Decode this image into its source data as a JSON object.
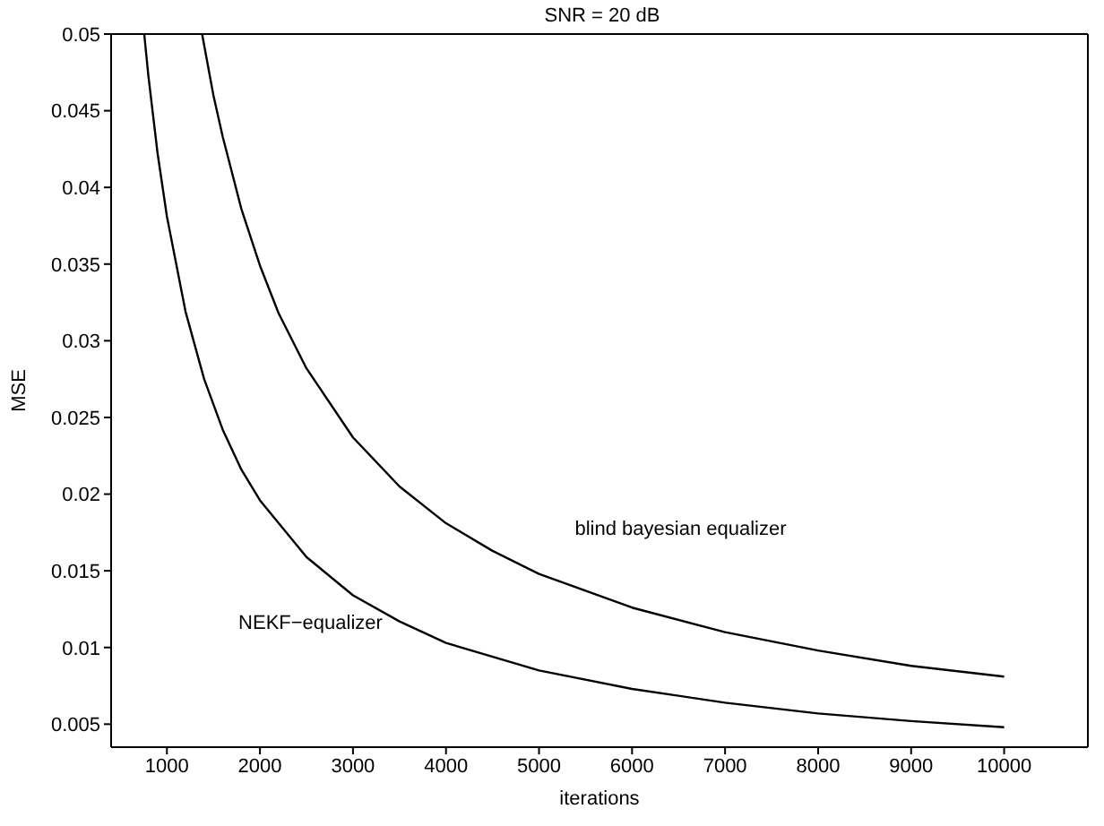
{
  "chart_data": {
    "type": "line",
    "title": "SNR = 20 dB",
    "xlabel": "iterations",
    "ylabel": "MSE",
    "xlim": [
      400,
      10900
    ],
    "xticks": [
      1000,
      2000,
      3000,
      4000,
      5000,
      6000,
      7000,
      8000,
      9000,
      10000
    ],
    "ylim": [
      0.0035,
      0.05
    ],
    "yticks": [
      0.005,
      0.01,
      0.015,
      0.02,
      0.025,
      0.03,
      0.035,
      0.04,
      0.045,
      0.05
    ],
    "grid": false,
    "legend": false,
    "marker": "none",
    "line_style": "solid",
    "series": [
      {
        "name": "NEKF−equalizer",
        "color": "#000000",
        "x": [
          756,
          800,
          900,
          1000,
          1200,
          1400,
          1600,
          1800,
          2000,
          2500,
          3000,
          3500,
          4000,
          5000,
          6000,
          7000,
          8000,
          9000,
          10000
        ],
        "values": [
          0.05,
          0.0473,
          0.0422,
          0.0381,
          0.0319,
          0.0275,
          0.0242,
          0.0216,
          0.0196,
          0.0159,
          0.0134,
          0.0117,
          0.0103,
          0.0085,
          0.0073,
          0.0064,
          0.0057,
          0.0052,
          0.0048
        ]
      },
      {
        "name": "blind bayesian equalizer",
        "color": "#000000",
        "x": [
          1378,
          1500,
          1600,
          1800,
          2000,
          2200,
          2500,
          3000,
          3500,
          4000,
          4500,
          5000,
          6000,
          7000,
          8000,
          9000,
          10000
        ],
        "values": [
          0.05,
          0.046,
          0.0433,
          0.0386,
          0.0349,
          0.0318,
          0.0282,
          0.0237,
          0.0205,
          0.0181,
          0.0163,
          0.0148,
          0.0126,
          0.011,
          0.0098,
          0.0088,
          0.0081
        ]
      }
    ]
  }
}
